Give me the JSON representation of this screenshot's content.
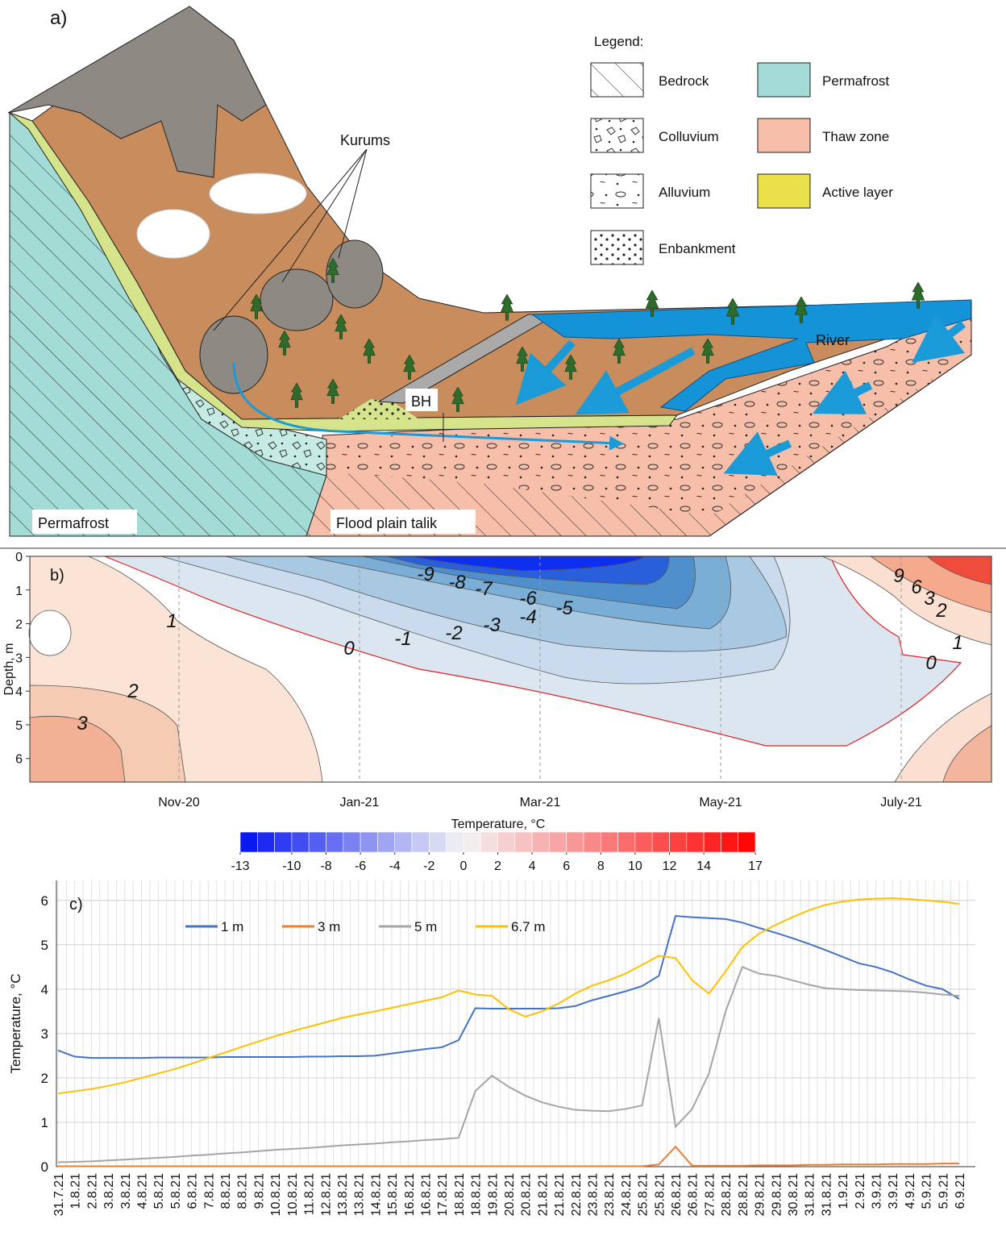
{
  "diagram": {
    "panel_label": "a)",
    "legend_title": "Legend:",
    "legend": [
      "Bedrock",
      "Permafrost",
      "Colluvium",
      "Thaw zone",
      "Alluvium",
      "Active layer",
      "Enbankment"
    ],
    "labels": {
      "kurums": "Kurums",
      "bh": "BH",
      "river": "River",
      "permafrost": "Permafrost",
      "talik": "Flood plain talik"
    }
  },
  "chart_data": [
    {
      "type": "contour",
      "label": "b)",
      "ylabel": "Depth, m",
      "categories": [
        "Nov-20",
        "Jan-21",
        "Mar-21",
        "May-21",
        "July-21"
      ],
      "ylim": [
        0,
        6.7
      ],
      "y_inverted": true,
      "yticks": [
        0,
        1,
        2,
        3,
        4,
        5,
        6
      ],
      "contour_labels": [
        -9,
        -8,
        -7,
        -6,
        -5,
        -4,
        -3,
        -2,
        -1,
        0,
        1,
        2,
        3,
        9,
        6,
        3,
        2,
        1,
        0
      ],
      "colorbar": {
        "label": "Temperature, °C",
        "lim": [
          -13,
          17
        ],
        "ticks": [
          -13,
          -10,
          -8,
          -6,
          -4,
          -2,
          0,
          2,
          4,
          6,
          8,
          10,
          12,
          14,
          17
        ],
        "colors": [
          "#0010f0",
          "#f4f4f4",
          "#ff0000"
        ]
      }
    },
    {
      "type": "line",
      "label": "c)",
      "ylabel": "Temperature, °C",
      "grid": true,
      "categories": [
        "31.7.21",
        "1.8.21",
        "2.8.21",
        "3.8.21",
        "3.8.21",
        "4.8.21",
        "5.8.21",
        "5.8.21",
        "6.8.21",
        "7.8.21",
        "8.8.21",
        "8.8.21",
        "9.8.21",
        "10.8.21",
        "10.8.21",
        "11.8.21",
        "12.8.21",
        "13.8.21",
        "13.8.21",
        "14.8.21",
        "15.8.21",
        "16.8.21",
        "16.8.21",
        "17.8.21",
        "18.8.21",
        "18.8.21",
        "19.8.21",
        "20.8.21",
        "20.8.21",
        "21.8.21",
        "21.8.21",
        "22.8.21",
        "23.8.21",
        "23.8.21",
        "24.8.21",
        "25.8.21",
        "25.8.21",
        "26.8.21",
        "26.8.21",
        "27.8.21",
        "28.8.21",
        "28.8.21",
        "29.8.21",
        "29.8.21",
        "30.8.21",
        "31.8.21",
        "31.8.21",
        "1.9.21",
        "2.9.21",
        "3.9.21",
        "3.9.21",
        "4.9.21",
        "5.9.21",
        "5.9.21",
        "6.9.21"
      ],
      "ylim": [
        0,
        6.45
      ],
      "yticks": [
        0,
        1,
        2,
        3,
        4,
        5,
        6
      ],
      "series": [
        {
          "name": "1 m",
          "color": "#4472c4",
          "values": [
            2.62,
            2.48,
            2.45,
            2.45,
            2.45,
            2.45,
            2.46,
            2.46,
            2.46,
            2.46,
            2.47,
            2.47,
            2.47,
            2.47,
            2.47,
            2.48,
            2.48,
            2.49,
            2.49,
            2.5,
            2.55,
            2.6,
            2.65,
            2.69,
            2.85,
            3.57,
            3.56,
            3.56,
            3.56,
            3.56,
            3.57,
            3.62,
            3.75,
            3.85,
            3.95,
            4.07,
            4.3,
            5.65,
            5.62,
            5.6,
            5.58,
            5.5,
            5.38,
            5.27,
            5.15,
            5.02,
            4.88,
            4.73,
            4.58,
            4.5,
            4.38,
            4.22,
            4.08,
            4.0,
            3.78
          ]
        },
        {
          "name": "3 m",
          "color": "#ed7d31",
          "values": [
            0.01,
            0.01,
            0.01,
            0.01,
            0.01,
            0.01,
            0.01,
            0.01,
            0.01,
            0.01,
            0.01,
            0.01,
            0.01,
            0.01,
            0.01,
            0.01,
            0.01,
            0.01,
            0.01,
            0.01,
            0.01,
            0.01,
            0.01,
            0.01,
            0.01,
            0.01,
            0.01,
            0.01,
            0.01,
            0.01,
            0.01,
            0.01,
            0.01,
            0.01,
            0.01,
            0.01,
            0.05,
            0.45,
            0.02,
            0.02,
            0.02,
            0.02,
            0.03,
            0.03,
            0.03,
            0.04,
            0.04,
            0.05,
            0.05,
            0.05,
            0.06,
            0.06,
            0.06,
            0.07,
            0.07
          ]
        },
        {
          "name": "5 m",
          "color": "#a5a5a5",
          "values": [
            0.1,
            0.11,
            0.12,
            0.14,
            0.16,
            0.18,
            0.2,
            0.22,
            0.25,
            0.27,
            0.3,
            0.32,
            0.35,
            0.38,
            0.4,
            0.42,
            0.45,
            0.48,
            0.5,
            0.52,
            0.55,
            0.57,
            0.6,
            0.62,
            0.65,
            1.7,
            2.05,
            1.8,
            1.6,
            1.45,
            1.35,
            1.28,
            1.26,
            1.25,
            1.3,
            1.38,
            3.35,
            0.9,
            1.3,
            2.1,
            3.5,
            4.5,
            4.35,
            4.3,
            4.2,
            4.1,
            4.02,
            4.0,
            3.98,
            3.97,
            3.96,
            3.95,
            3.92,
            3.88,
            3.85
          ]
        },
        {
          "name": "6.7 m",
          "color": "#ffc000",
          "values": [
            1.65,
            1.7,
            1.75,
            1.82,
            1.9,
            2.0,
            2.1,
            2.2,
            2.32,
            2.45,
            2.57,
            2.7,
            2.82,
            2.94,
            3.05,
            3.15,
            3.25,
            3.35,
            3.43,
            3.5,
            3.58,
            3.66,
            3.74,
            3.82,
            3.97,
            3.88,
            3.85,
            3.55,
            3.38,
            3.5,
            3.68,
            3.9,
            4.08,
            4.2,
            4.35,
            4.55,
            4.75,
            4.7,
            4.2,
            3.9,
            4.4,
            4.95,
            5.25,
            5.45,
            5.62,
            5.78,
            5.9,
            5.97,
            6.02,
            6.04,
            6.05,
            6.03,
            6.0,
            5.97,
            5.92
          ]
        }
      ]
    }
  ]
}
